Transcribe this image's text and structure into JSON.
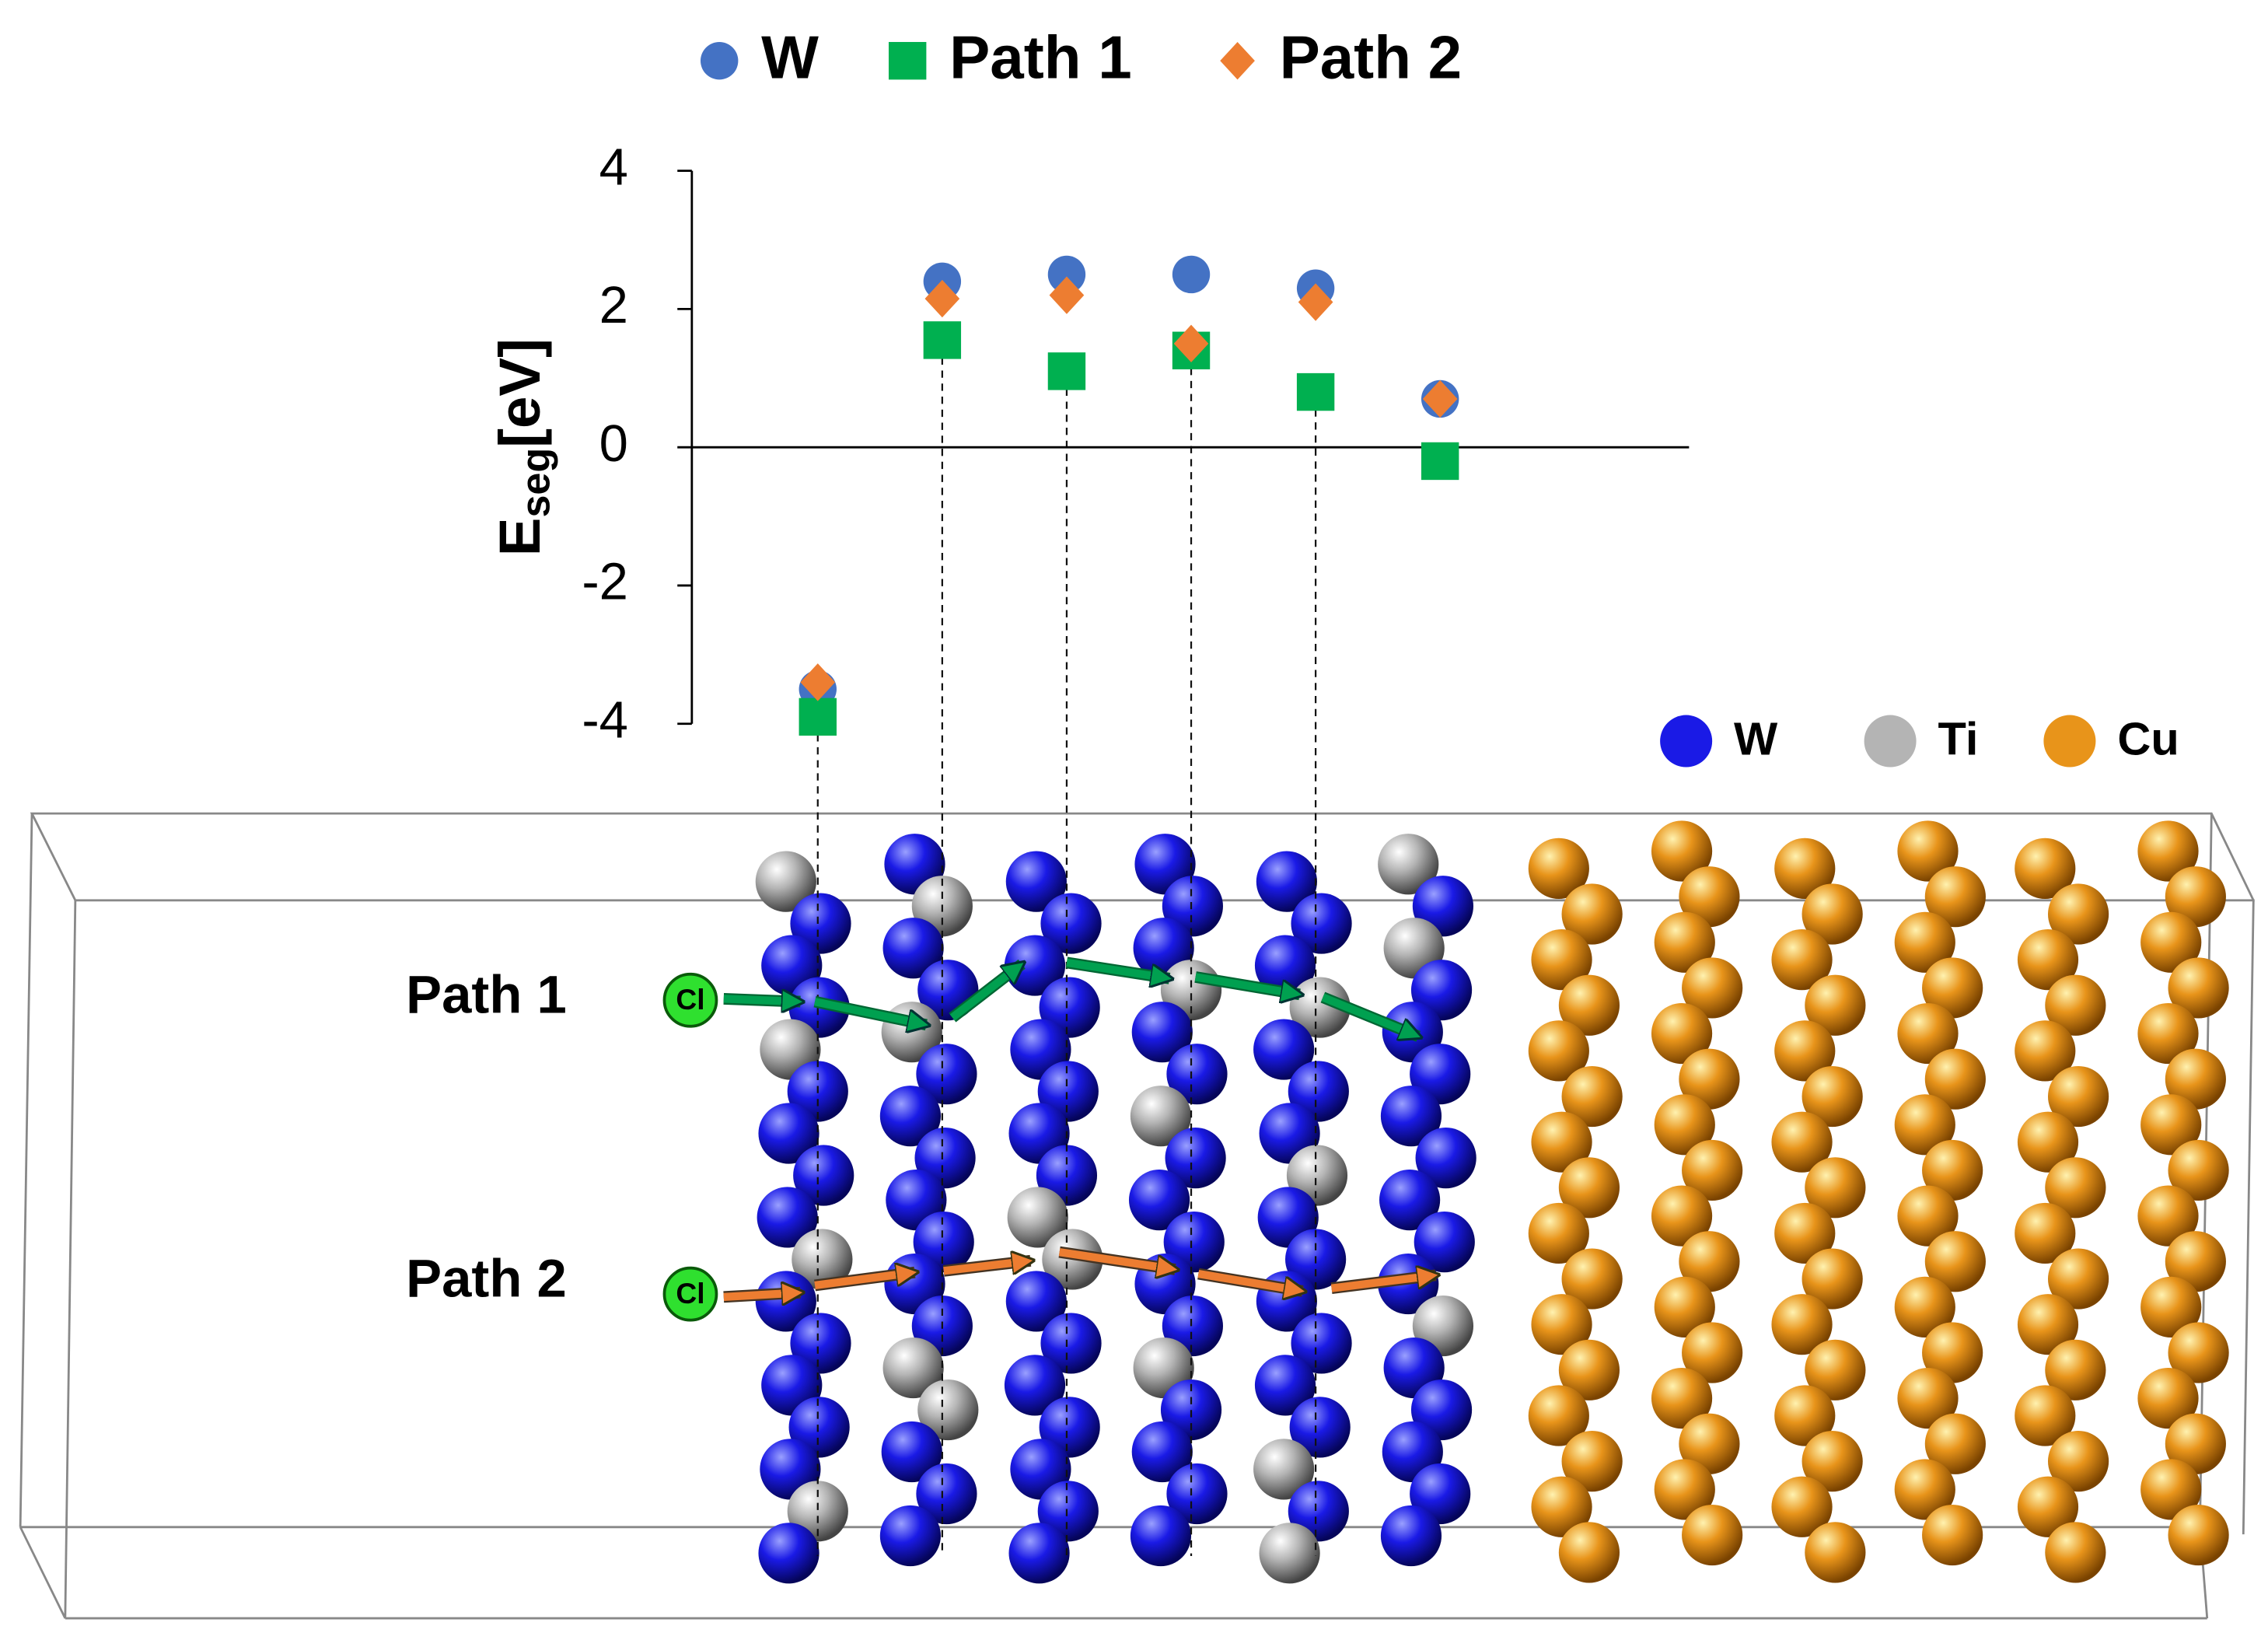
{
  "chart_data": {
    "type": "scatter",
    "legend": "top",
    "categories": [
      null,
      null,
      null,
      null,
      null,
      null
    ],
    "ylabel": "E",
    "ylabel_sub": "seg",
    "ylabel_unit": "[eV]",
    "ylim": [
      -4,
      4
    ],
    "yticks": [
      -4,
      -2,
      0,
      2,
      4
    ],
    "series": [
      {
        "name": "W",
        "color": "#4472c4",
        "marker": "circle",
        "values": [
          -3.5,
          2.4,
          2.5,
          2.5,
          2.3,
          0.7
        ]
      },
      {
        "name": "Path 1",
        "color": "#00b050",
        "marker": "square",
        "values": [
          -3.9,
          1.55,
          1.1,
          1.4,
          0.8,
          -0.2
        ]
      },
      {
        "name": "Path 2",
        "color": "#ed7d31",
        "marker": "diamond",
        "values": [
          -3.4,
          2.15,
          2.2,
          1.5,
          2.1,
          0.7
        ]
      }
    ]
  },
  "diagram": {
    "path_labels": [
      "Path 1",
      "Path 2"
    ],
    "start_atom": [
      "Cl",
      "Cl"
    ],
    "atom_legend": [
      {
        "name": "W",
        "color": "#1a1ae6"
      },
      {
        "name": "Ti",
        "color": "#b4b4b4"
      },
      {
        "name": "Cu",
        "color": "#e8941a"
      }
    ]
  }
}
